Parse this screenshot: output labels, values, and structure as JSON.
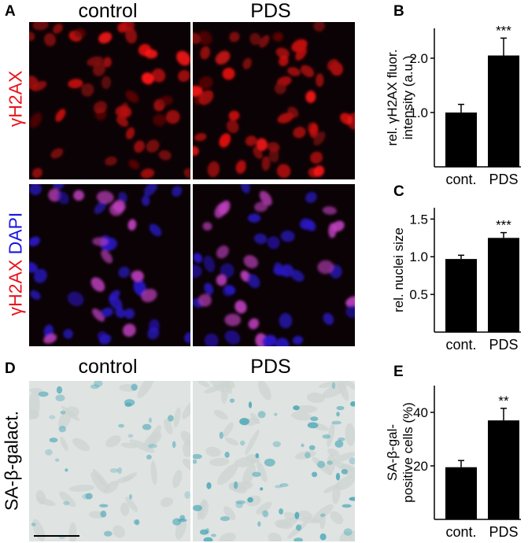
{
  "panels": {
    "A": {
      "letter": "A",
      "col_titles": [
        "control",
        "PDS"
      ],
      "row1_label": "γH2AX",
      "row2_label_a": "γH2AX",
      "row2_label_b": "DAPI"
    },
    "D": {
      "letter": "D",
      "col_titles": [
        "control",
        "PDS"
      ],
      "row_label": "SA-β-galact."
    }
  },
  "colors": {
    "fluor_bg": "#0b0205",
    "gamma_red": "#e02020",
    "dapi_blue": "#2a18c8",
    "magenta": "#c040c0",
    "sa_bg": "#dfe3e1",
    "sa_blue": "#4aa8b8",
    "bar": "#000000",
    "label_red": "#e8141c",
    "label_blue": "#1a14e0"
  },
  "chart_data": [
    {
      "panel": "B",
      "type": "bar",
      "categories": [
        "cont.",
        "PDS"
      ],
      "values": [
        1.0,
        2.05
      ],
      "errors": [
        0.15,
        0.32
      ],
      "significance": [
        "",
        "***"
      ],
      "ylabel_lines": [
        "rel. γH2AX fluor.",
        "intensity (a.u.)"
      ],
      "yticks": [
        1.0,
        2.0
      ],
      "ytick_labels": [
        "1.0",
        "2.0"
      ],
      "ylim": [
        0,
        2.55
      ]
    },
    {
      "panel": "C",
      "type": "bar",
      "categories": [
        "cont.",
        "PDS"
      ],
      "values": [
        0.97,
        1.25
      ],
      "errors": [
        0.05,
        0.07
      ],
      "significance": [
        "",
        "***"
      ],
      "ylabel_lines": [
        "rel. nuclei size"
      ],
      "yticks": [
        0.5,
        1.0,
        1.5
      ],
      "ytick_labels": [
        "0.5",
        "1.0",
        "1.5"
      ],
      "ylim": [
        0,
        1.65
      ]
    },
    {
      "panel": "E",
      "type": "bar",
      "categories": [
        "cont.",
        "PDS"
      ],
      "values": [
        19.5,
        37
      ],
      "errors": [
        2.5,
        4.5
      ],
      "significance": [
        "",
        "**"
      ],
      "ylabel_lines": [
        "SA-β-gal-",
        "positive cells (%)"
      ],
      "yticks": [
        20,
        40
      ],
      "ytick_labels": [
        "20",
        "40"
      ],
      "ylim": [
        0,
        50
      ]
    }
  ],
  "chart_letters": [
    "B",
    "C",
    "E"
  ]
}
